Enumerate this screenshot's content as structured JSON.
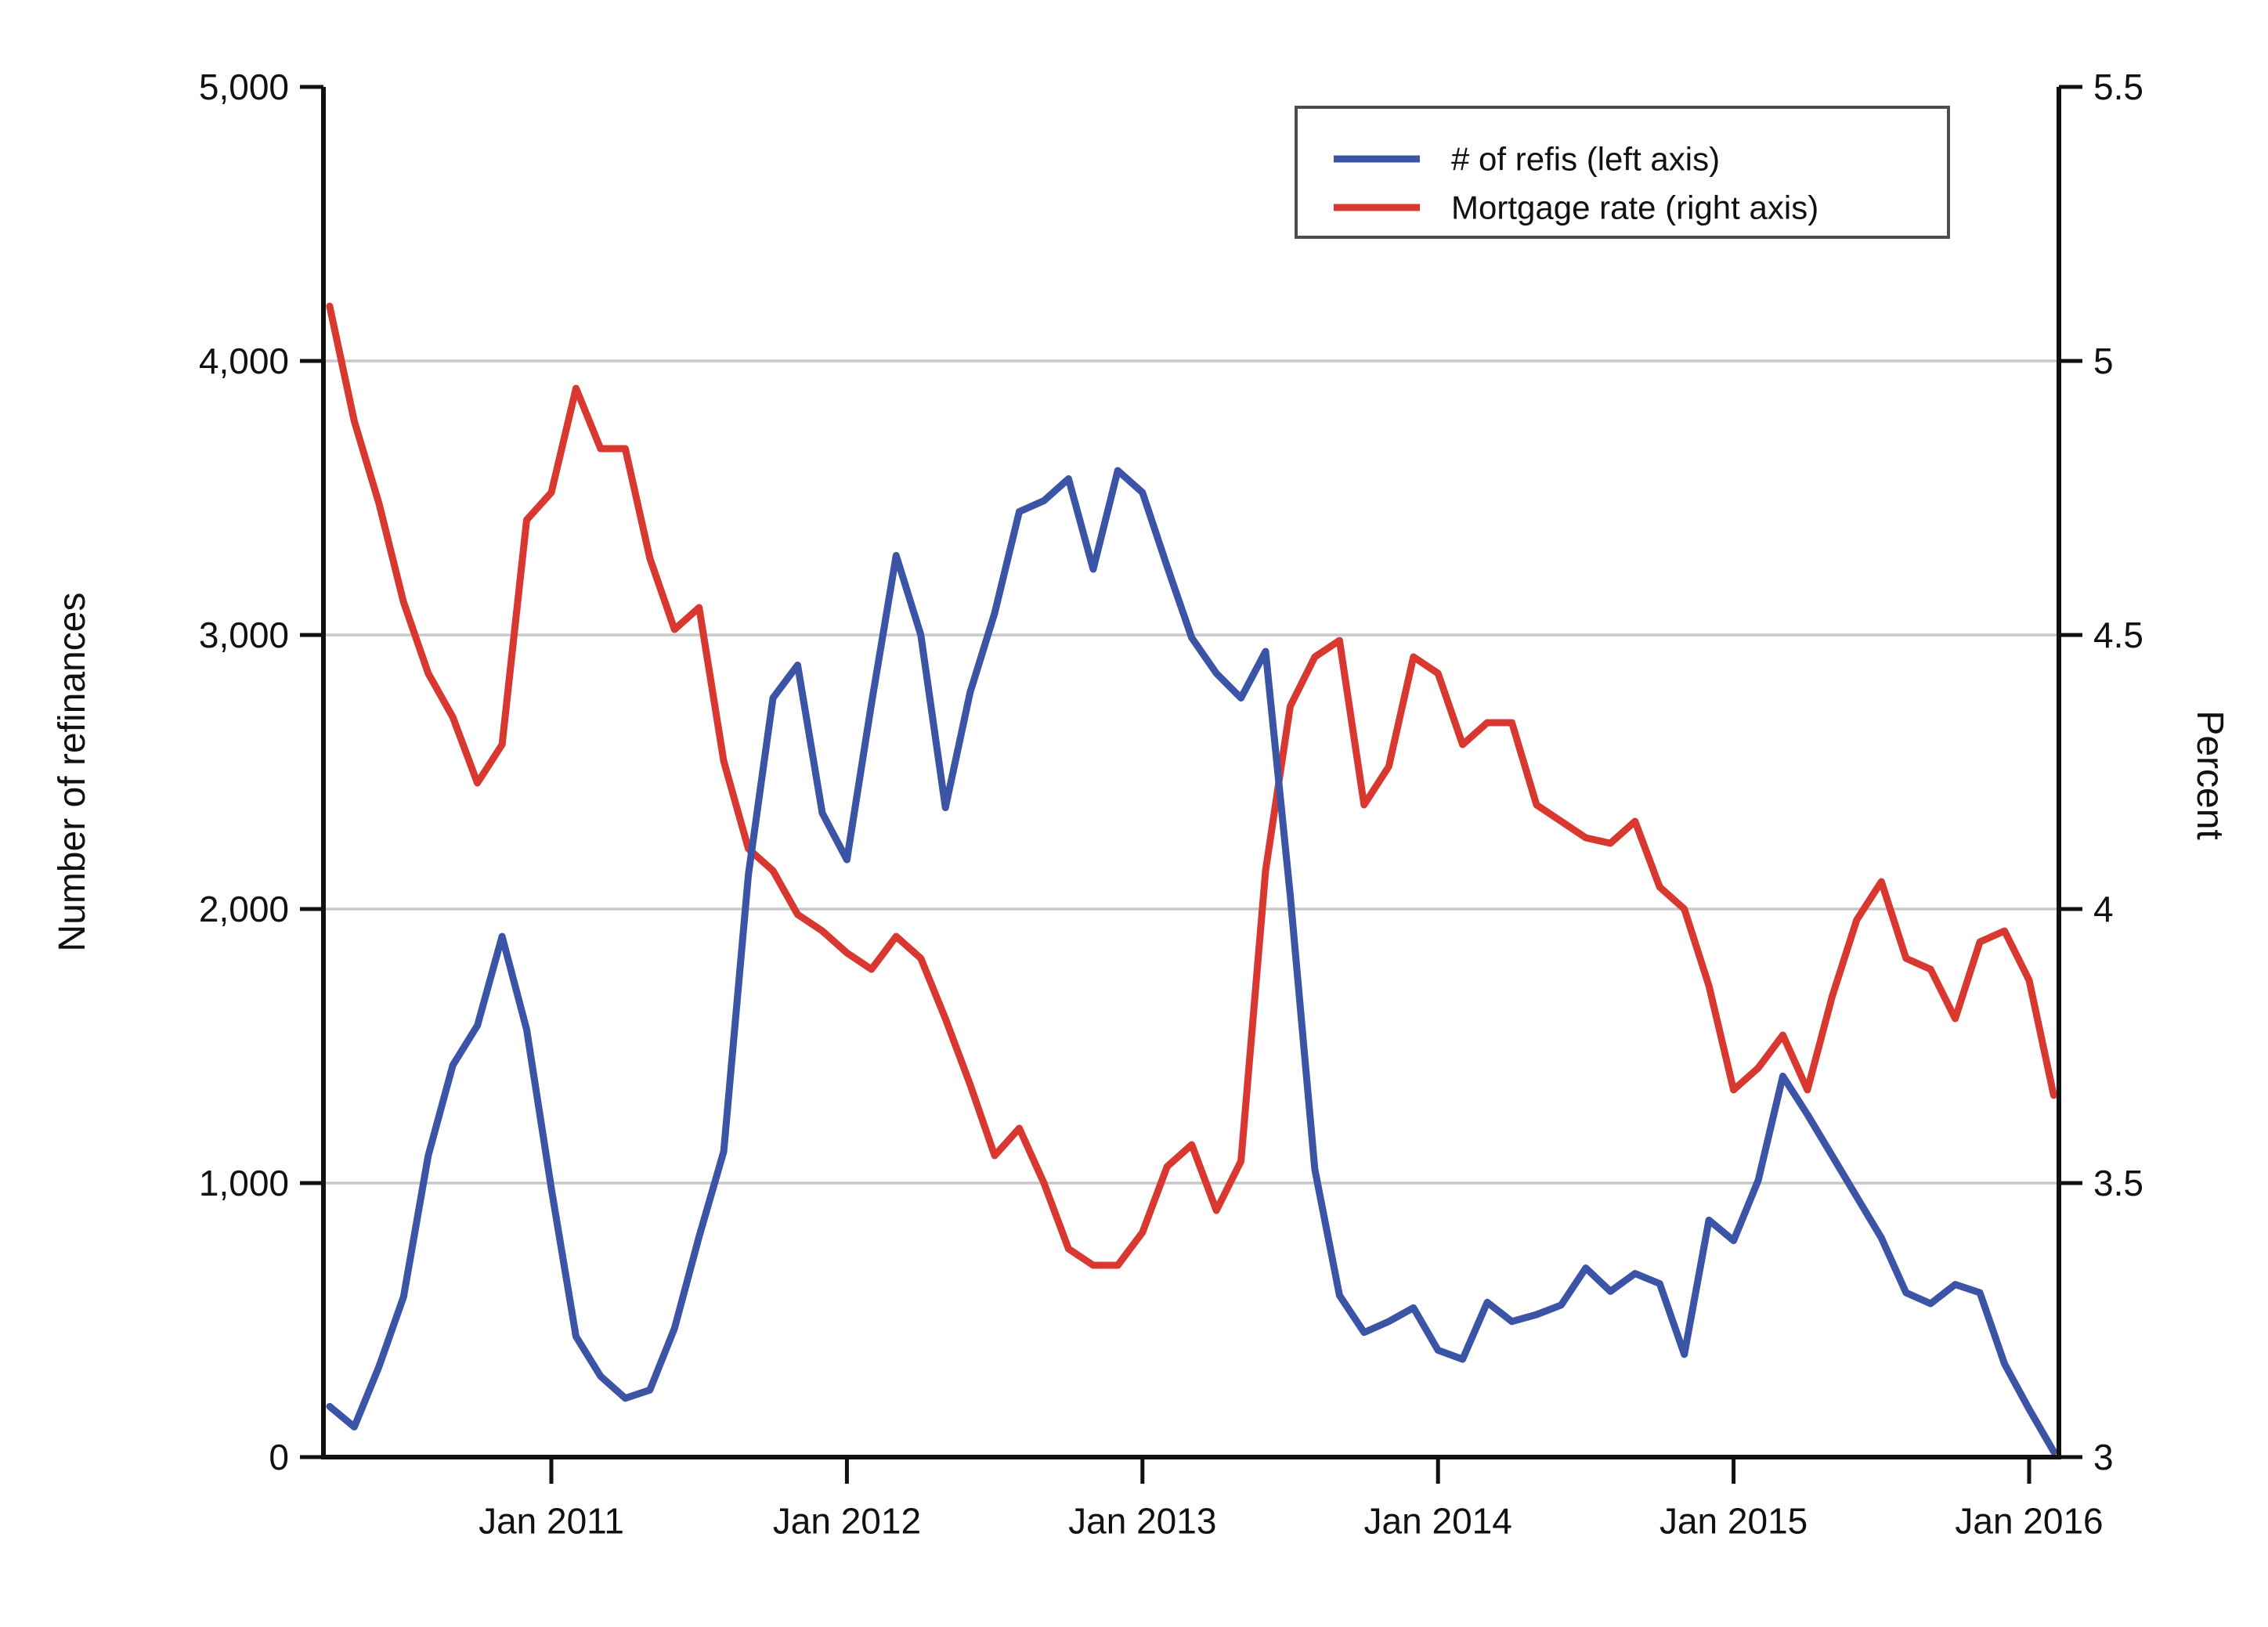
{
  "chart_data": {
    "type": "line",
    "title": "",
    "grid": "horizontal",
    "legend_position": "top-right",
    "colors": {
      "refis_line": "#3B54A5",
      "rate_line": "#D8382F",
      "gridline": "#C8C8C8",
      "axis": "#111111",
      "legend_border": "#4D4D4D",
      "background": "#FFFFFF"
    },
    "x": [
      "Apr 2010",
      "May 2010",
      "Jun 2010",
      "Jul 2010",
      "Aug 2010",
      "Sep 2010",
      "Oct 2010",
      "Nov 2010",
      "Dec 2010",
      "Jan 2011",
      "Feb 2011",
      "Mar 2011",
      "Apr 2011",
      "May 2011",
      "Jun 2011",
      "Jul 2011",
      "Aug 2011",
      "Sep 2011",
      "Oct 2011",
      "Nov 2011",
      "Dec 2011",
      "Jan 2012",
      "Feb 2012",
      "Mar 2012",
      "Apr 2012",
      "May 2012",
      "Jun 2012",
      "Jul 2012",
      "Aug 2012",
      "Sep 2012",
      "Oct 2012",
      "Nov 2012",
      "Dec 2012",
      "Jan 2013",
      "Feb 2013",
      "Mar 2013",
      "Apr 2013",
      "May 2013",
      "Jun 2013",
      "Jul 2013",
      "Aug 2013",
      "Sep 2013",
      "Oct 2013",
      "Nov 2013",
      "Dec 2013",
      "Jan 2014",
      "Feb 2014",
      "Mar 2014",
      "Apr 2014",
      "May 2014",
      "Jun 2014",
      "Jul 2014",
      "Aug 2014",
      "Sep 2014",
      "Oct 2014",
      "Nov 2014",
      "Dec 2014",
      "Jan 2015",
      "Feb 2015",
      "Mar 2015",
      "Apr 2015",
      "May 2015",
      "Jun 2015",
      "Jul 2015",
      "Aug 2015",
      "Sep 2015",
      "Oct 2015",
      "Nov 2015",
      "Dec 2015",
      "Jan 2016",
      "Feb 2016"
    ],
    "x_tick_labels": [
      "Jan 2011",
      "Jan 2012",
      "Jan 2013",
      "Jan 2014",
      "Jan 2015",
      "Jan 2016"
    ],
    "series": [
      {
        "name": "# of refis (left axis)",
        "axis": "left",
        "color": "#3B54A5",
        "values": [
          185,
          110,
          330,
          585,
          1100,
          1430,
          1575,
          1900,
          1560,
          980,
          440,
          295,
          215,
          245,
          470,
          805,
          1115,
          2125,
          2770,
          2890,
          2350,
          2180,
          2750,
          3290,
          3000,
          2370,
          2790,
          3080,
          3450,
          3490,
          3570,
          3240,
          3600,
          3520,
          3250,
          2990,
          2860,
          2770,
          2940,
          2050,
          1050,
          590,
          455,
          495,
          545,
          390,
          357,
          565,
          495,
          520,
          555,
          690,
          605,
          670,
          633,
          375,
          865,
          790,
          1010,
          1390,
          1250,
          1100,
          950,
          800,
          600,
          560,
          630,
          600,
          340,
          175,
          20
        ]
      },
      {
        "name": "Mortgage rate (right axis)",
        "axis": "right",
        "color": "#D8382F",
        "values": [
          5.1,
          4.89,
          4.74,
          4.56,
          4.43,
          4.35,
          4.23,
          4.3,
          4.71,
          4.76,
          4.95,
          4.84,
          4.84,
          4.64,
          4.51,
          4.55,
          4.27,
          4.11,
          4.07,
          3.99,
          3.96,
          3.92,
          3.89,
          3.95,
          3.91,
          3.8,
          3.68,
          3.55,
          3.6,
          3.5,
          3.38,
          3.35,
          3.35,
          3.41,
          3.53,
          3.57,
          3.45,
          3.54,
          4.07,
          4.37,
          4.46,
          4.49,
          4.19,
          4.26,
          4.46,
          4.43,
          4.3,
          4.34,
          4.34,
          4.19,
          4.16,
          4.13,
          4.12,
          4.16,
          4.04,
          4.0,
          3.86,
          3.67,
          3.71,
          3.77,
          3.67,
          3.84,
          3.98,
          4.05,
          3.91,
          3.89,
          3.8,
          3.94,
          3.96,
          3.87,
          3.66
        ]
      }
    ],
    "left_axis": {
      "label": "Number of refinances",
      "min": 0,
      "max": 5000,
      "ticks": [
        0,
        1000,
        2000,
        3000,
        4000,
        5000
      ],
      "tick_labels": [
        "0",
        "1,000",
        "2,000",
        "3,000",
        "4,000",
        "5,000"
      ]
    },
    "right_axis": {
      "label": "Percent",
      "min": 3,
      "max": 5.5,
      "ticks": [
        3,
        3.5,
        4,
        4.5,
        5,
        5.5
      ],
      "tick_labels": [
        "3",
        "3.5",
        "4",
        "4.5",
        "5",
        "5.5"
      ]
    }
  }
}
